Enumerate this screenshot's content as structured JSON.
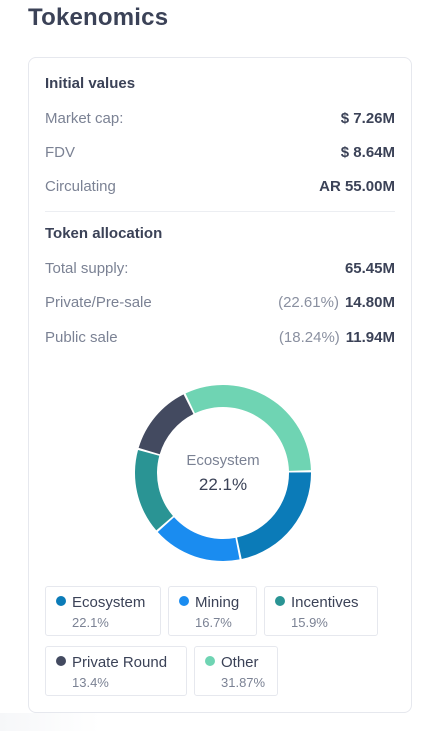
{
  "page": {
    "title": "Tokenomics"
  },
  "initial_values": {
    "title": "Initial values",
    "rows": [
      {
        "label": "Market cap:",
        "value": "$ 7.26M"
      },
      {
        "label": "FDV",
        "value": "$ 8.64M"
      },
      {
        "label": "Circulating",
        "value": "AR 55.00M"
      }
    ]
  },
  "token_allocation": {
    "title": "Token allocation",
    "rows": [
      {
        "label": "Total supply:",
        "pct": "",
        "value": "65.45M"
      },
      {
        "label": "Private/Pre-sale",
        "pct": "(22.61%)",
        "value": "14.80M"
      },
      {
        "label": "Public sale",
        "pct": "(18.24%)",
        "value": "11.94M"
      }
    ]
  },
  "donut": {
    "center_label": "Ecosystem",
    "center_value": "22.1%"
  },
  "chart_data": {
    "type": "pie",
    "categories": [
      "Ecosystem",
      "Mining",
      "Incentives",
      "Private Round",
      "Other"
    ],
    "values": [
      22.1,
      16.7,
      15.9,
      13.4,
      31.87
    ],
    "value_labels": [
      "22.1%",
      "16.7%",
      "15.9%",
      "13.4%",
      "31.87%"
    ],
    "colors": [
      "#0b7bb8",
      "#1a8cf0",
      "#2a9494",
      "#434a60",
      "#6fd4b3"
    ],
    "highlighted": "Ecosystem"
  }
}
